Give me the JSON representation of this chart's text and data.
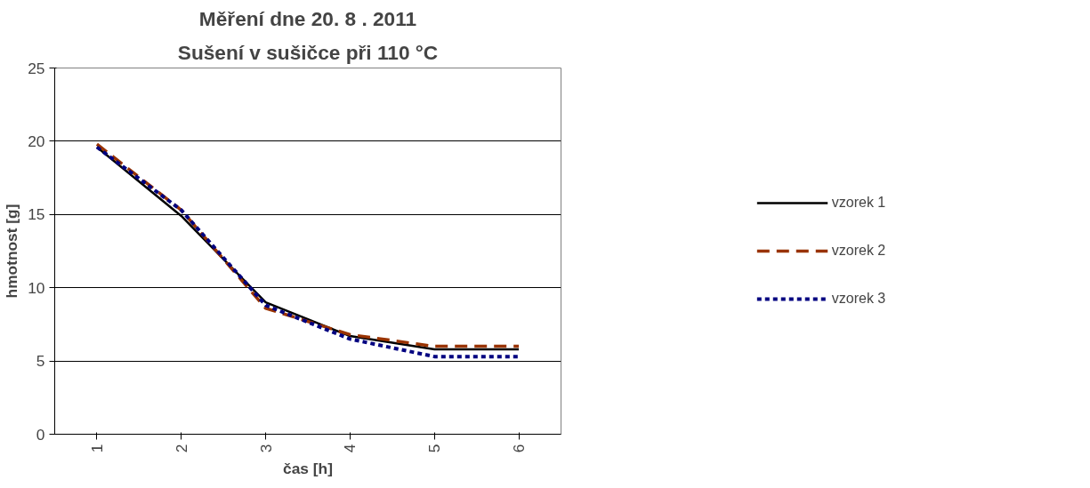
{
  "chart_data": {
    "type": "line",
    "title": "Měření dne 20. 8 . 2011",
    "subtitle": "Sušení v sušičce při 110 °C",
    "xlabel": "čas [h]",
    "ylabel": "hmotnost [g]",
    "categories": [
      "1",
      "2",
      "3",
      "4",
      "5",
      "6"
    ],
    "series": [
      {
        "name": "vzorek 1",
        "color": "#000000",
        "line_style": "solid",
        "values": [
          19.6,
          14.9,
          9,
          6.7,
          5.8,
          5.8
        ]
      },
      {
        "name": "vzorek 2",
        "color": "#993300",
        "line_style": "dashed",
        "values": [
          19.8,
          15.3,
          8.6,
          6.8,
          6,
          6
        ]
      },
      {
        "name": "vzorek 3",
        "color": "#000080",
        "line_style": "dotted",
        "values": [
          19.6,
          15.3,
          8.8,
          6.5,
          5.3,
          5.3
        ]
      }
    ],
    "ylim": [
      0,
      25
    ],
    "yticks": [
      0,
      5,
      10,
      15,
      20,
      25
    ],
    "grid": "y",
    "legend": "right",
    "marker": "none"
  }
}
